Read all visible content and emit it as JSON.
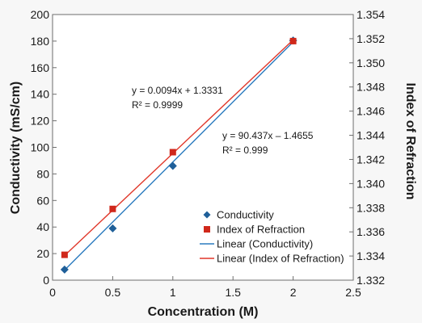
{
  "chart_data": {
    "type": "scatter",
    "title": "",
    "xlabel": "Concentration (M)",
    "ylabel_left": "Conductivity (mS/cm)",
    "ylabel_right": "Index of Refraction",
    "xlim": [
      0,
      2.5
    ],
    "ylim_left": [
      0,
      200
    ],
    "ylim_right": [
      1.332,
      1.354
    ],
    "x_ticks": [
      "0",
      "0.5",
      "1",
      "1.5",
      "2",
      "2.5"
    ],
    "y_left_ticks": [
      "0",
      "20",
      "40",
      "60",
      "80",
      "100",
      "120",
      "140",
      "160",
      "180",
      "200"
    ],
    "y_right_ticks": [
      "1.332",
      "1.334",
      "1.336",
      "1.338",
      "1.340",
      "1.342",
      "1.344",
      "1.346",
      "1.348",
      "1.350",
      "1.352",
      "1.354"
    ],
    "grid": false,
    "legend_position": "lower-right",
    "series": [
      {
        "name": "Conductivity",
        "axis": "left",
        "marker": "diamond",
        "color": "#1f5f99",
        "x": [
          0.1,
          0.5,
          1,
          2
        ],
        "y": [
          8.0,
          39.0,
          86.0,
          180.5
        ]
      },
      {
        "name": "Index of Refraction",
        "axis": "right",
        "marker": "square",
        "color": "#d0281b",
        "x": [
          0.1,
          0.5,
          1,
          2
        ],
        "y": [
          1.3341,
          1.3379,
          1.3426,
          1.3518
        ]
      }
    ],
    "trendlines": [
      {
        "name": "Linear (Conductivity)",
        "axis": "left",
        "color": "#2b7bbf",
        "slope": 90.437,
        "intercept": -1.4655,
        "x_range": [
          0.1,
          2
        ],
        "equation": "y = 90.437x – 1.4655",
        "r2": "R² = 0.999"
      },
      {
        "name": "Linear (Index of Refraction)",
        "axis": "right",
        "color": "#e0372a",
        "slope": 0.0094,
        "intercept": 1.3331,
        "x_range": [
          0.1,
          2
        ],
        "equation": "y = 0.0094x + 1.3331",
        "r2": "R² = 0.9999"
      }
    ],
    "legend": [
      "Conductivity",
      "Index of Refraction",
      "Linear (Conductivity)",
      "Linear (Index of Refraction)"
    ]
  }
}
